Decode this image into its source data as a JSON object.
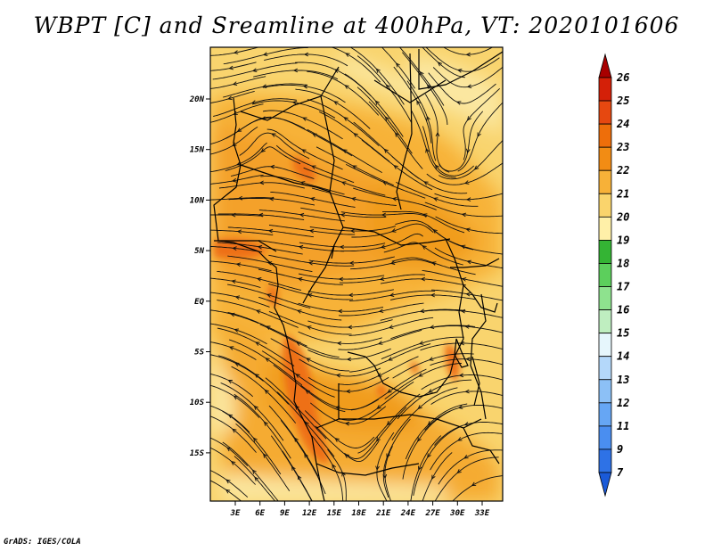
{
  "title": "WBPT [C] and Sreamline at 400hPa, VT: 2020101606",
  "credit": "GrADS: IGES/COLA",
  "map": {
    "lon_labels": [
      "3E",
      "6E",
      "9E",
      "12E",
      "15E",
      "18E",
      "21E",
      "24E",
      "27E",
      "30E",
      "33E"
    ],
    "lat_labels": [
      "20N",
      "15N",
      "10N",
      "5N",
      "EQ",
      "5S",
      "10S",
      "15S"
    ]
  },
  "colorbar": {
    "labels": [
      "7",
      "9",
      "11",
      "12",
      "13",
      "14",
      "15",
      "16",
      "17",
      "18",
      "19",
      "20",
      "21",
      "22",
      "23",
      "24",
      "25",
      "26"
    ],
    "colors": [
      "#1a5ad8",
      "#2e72e6",
      "#4a8ef0",
      "#66a6f4",
      "#8cc0f6",
      "#b4d8fa",
      "#e6f6fc",
      "#bfeec0",
      "#8ee28e",
      "#5ccf5c",
      "#34b434",
      "#fff0a8",
      "#fad46c",
      "#f7b138",
      "#f28c14",
      "#ee6e0a",
      "#e64810",
      "#d42008",
      "#a80000"
    ]
  }
}
